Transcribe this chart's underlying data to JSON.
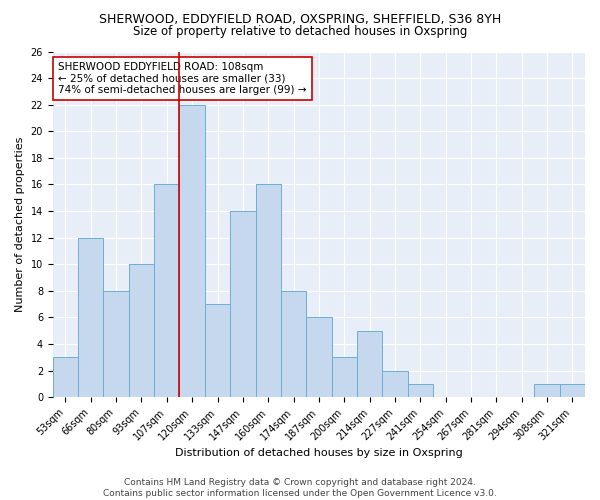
{
  "title_line1": "SHERWOOD, EDDYFIELD ROAD, OXSPRING, SHEFFIELD, S36 8YH",
  "title_line2": "Size of property relative to detached houses in Oxspring",
  "xlabel": "Distribution of detached houses by size in Oxspring",
  "ylabel": "Number of detached properties",
  "categories": [
    "53sqm",
    "66sqm",
    "80sqm",
    "93sqm",
    "107sqm",
    "120sqm",
    "133sqm",
    "147sqm",
    "160sqm",
    "174sqm",
    "187sqm",
    "200sqm",
    "214sqm",
    "227sqm",
    "241sqm",
    "254sqm",
    "267sqm",
    "281sqm",
    "294sqm",
    "308sqm",
    "321sqm"
  ],
  "values": [
    3,
    12,
    8,
    10,
    16,
    22,
    7,
    14,
    16,
    8,
    6,
    3,
    5,
    2,
    1,
    0,
    0,
    0,
    0,
    1,
    1
  ],
  "bar_color": "#c5d8ed",
  "bar_edge_color": "#6baed6",
  "vertical_line_x": 4.5,
  "vertical_line_color": "#cc0000",
  "annotation_line1": "SHERWOOD EDDYFIELD ROAD: 108sqm",
  "annotation_line2": "← 25% of detached houses are smaller (33)",
  "annotation_line3": "74% of semi-detached houses are larger (99) →",
  "ylim_max": 26,
  "yticks": [
    0,
    2,
    4,
    6,
    8,
    10,
    12,
    14,
    16,
    18,
    20,
    22,
    24,
    26
  ],
  "footer_text": "Contains HM Land Registry data © Crown copyright and database right 2024.\nContains public sector information licensed under the Open Government Licence v3.0.",
  "background_color": "#e8eef7",
  "grid_color": "#ffffff",
  "title_fontsize": 9,
  "subtitle_fontsize": 8.5,
  "tick_fontsize": 7,
  "ylabel_fontsize": 8,
  "xlabel_fontsize": 8,
  "annotation_fontsize": 7.5,
  "footer_fontsize": 6.5
}
